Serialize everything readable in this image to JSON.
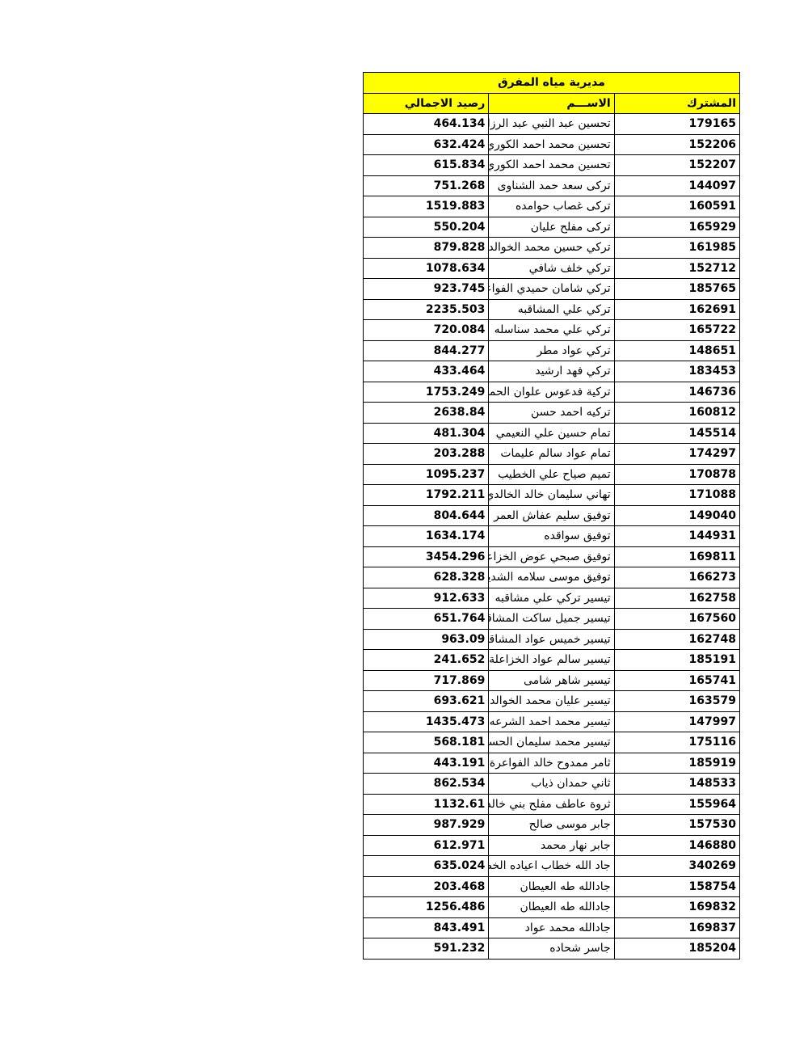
{
  "document": {
    "title": "مديرية مياه المفرق",
    "headers": {
      "id": "المشترك",
      "name": "الاســـم",
      "balance": "رصيد الاجمالي"
    },
    "highlight_color": "#ffff00",
    "rows": [
      {
        "id": "179165",
        "name": "تحسين عبد النبي عبد الرزاق",
        "balance": "464.134"
      },
      {
        "id": "152206",
        "name": "تحسين محمد احمد الكوري",
        "balance": "632.424"
      },
      {
        "id": "152207",
        "name": "تحسين محمد احمد الكوري",
        "balance": "615.834"
      },
      {
        "id": "144097",
        "name": "تركى سعد حمد الشناوى",
        "balance": "751.268"
      },
      {
        "id": "160591",
        "name": "تركى غصاب  حوامده",
        "balance": "1519.883"
      },
      {
        "id": "165929",
        "name": "تركى مفلح عليان",
        "balance": "550.204"
      },
      {
        "id": "161985",
        "name": "تركي حسين محمد الخوالده",
        "balance": "879.828"
      },
      {
        "id": "152712",
        "name": "تركي خلف شافي",
        "balance": "1078.634"
      },
      {
        "id": "185765",
        "name": "تركي شامان حميدي الفواعره",
        "balance": "923.745"
      },
      {
        "id": "162691",
        "name": "تركي علي المشاقبه",
        "balance": "2235.503"
      },
      {
        "id": "165722",
        "name": "تركي علي محمد سناسله",
        "balance": "720.084"
      },
      {
        "id": "148651",
        "name": "تركي عواد مطر",
        "balance": "844.277"
      },
      {
        "id": "183453",
        "name": "تركي فهد ارشيد",
        "balance": "433.464"
      },
      {
        "id": "146736",
        "name": "تركية فدعوس علوان الحمد",
        "balance": "1753.249"
      },
      {
        "id": "160812",
        "name": "تركيه احمد حسن",
        "balance": "2638.84"
      },
      {
        "id": "145514",
        "name": "تمام حسين علي النعيمي",
        "balance": "481.304"
      },
      {
        "id": "174297",
        "name": "تمام عواد سالم عليمات",
        "balance": "203.288"
      },
      {
        "id": "170878",
        "name": "تميم صياح علي الخطيب",
        "balance": "1095.237"
      },
      {
        "id": "171088",
        "name": "تهاني سليمان خالد الخالدي",
        "balance": "1792.211"
      },
      {
        "id": "149040",
        "name": "توفيق سليم عفاش العمر",
        "balance": "804.644"
      },
      {
        "id": "144931",
        "name": "توفيق سواقده",
        "balance": "1634.174"
      },
      {
        "id": "169811",
        "name": "توفيق صبحي عوض الخزاعلة",
        "balance": "3454.296"
      },
      {
        "id": "166273",
        "name": "توفيق موسى سلامه الشديفات",
        "balance": "628.328"
      },
      {
        "id": "162758",
        "name": "تيسير تركي علي مشاقبه",
        "balance": "912.633"
      },
      {
        "id": "167560",
        "name": "تيسير جميل ساكت المشاقبة",
        "balance": "651.764"
      },
      {
        "id": "162748",
        "name": "تيسير خميس عواد المشاقبه",
        "balance": "963.09"
      },
      {
        "id": "185191",
        "name": "تيسير سالم عواد الخزاعلة",
        "balance": "241.652"
      },
      {
        "id": "165741",
        "name": "تيسير شاهر شامى",
        "balance": "717.869"
      },
      {
        "id": "163579",
        "name": "تيسير عليان محمد الخوالدة",
        "balance": "693.621"
      },
      {
        "id": "147997",
        "name": "تيسير محمد احمد الشرعه",
        "balance": "1435.473"
      },
      {
        "id": "175116",
        "name": "تيسير محمد سليمان الحسبان",
        "balance": "568.181"
      },
      {
        "id": "185919",
        "name": "ثامر ممدوح خالد الفواعرة",
        "balance": "443.191"
      },
      {
        "id": "148533",
        "name": "ثاني حمدان ذياب",
        "balance": "862.534"
      },
      {
        "id": "155964",
        "name": "ثروة عاطف مفلح بني خالد",
        "balance": "1132.61"
      },
      {
        "id": "157530",
        "name": "جابر موسى صالح",
        "balance": "987.929"
      },
      {
        "id": "146880",
        "name": "جابر نهار محمد",
        "balance": "612.971"
      },
      {
        "id": "340269",
        "name": "جاد الله خطاب اعياده الخطاب",
        "balance": "635.024"
      },
      {
        "id": "158754",
        "name": "جادالله طه العيطان",
        "balance": "203.468"
      },
      {
        "id": "169832",
        "name": "جادالله طه العيطان",
        "balance": "1256.486"
      },
      {
        "id": "169837",
        "name": "جادالله محمد عواد",
        "balance": "843.491"
      },
      {
        "id": "185204",
        "name": "جاسر شحاده",
        "balance": "591.232"
      }
    ]
  }
}
